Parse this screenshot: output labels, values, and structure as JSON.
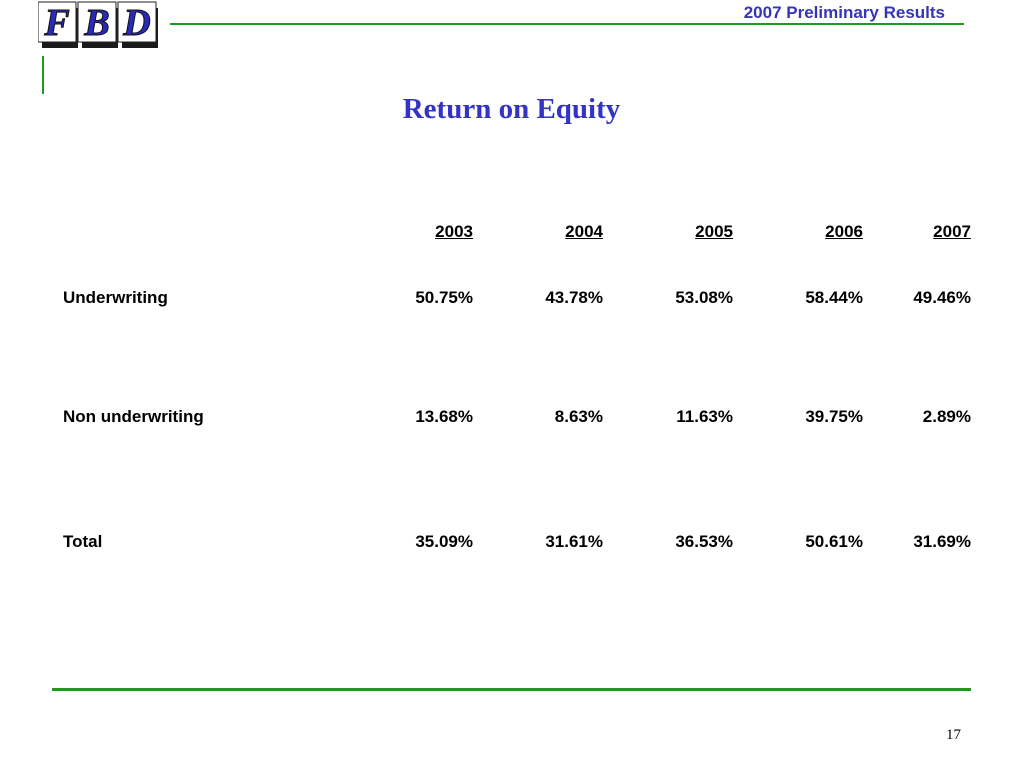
{
  "header": {
    "logo_text": "FBD",
    "title": "2007 Preliminary Results"
  },
  "page": {
    "title": "Return on Equity",
    "number": "17"
  },
  "table": {
    "columns": [
      "2003",
      "2004",
      "2005",
      "2006",
      "2007"
    ],
    "rows": [
      {
        "label": "Underwriting",
        "values": [
          "50.75%",
          "43.78%",
          "53.08%",
          "58.44%",
          "49.46%"
        ]
      },
      {
        "label": "Non underwriting",
        "values": [
          "13.68%",
          "8.63%",
          "11.63%",
          "39.75%",
          "2.89%"
        ]
      },
      {
        "label": "Total",
        "values": [
          "35.09%",
          "31.61%",
          "36.53%",
          "50.61%",
          "31.69%"
        ]
      }
    ]
  },
  "colors": {
    "accent_green": "#1e9a1e",
    "title_blue": "#3333c4",
    "logo_blue": "#2a2ab8"
  }
}
